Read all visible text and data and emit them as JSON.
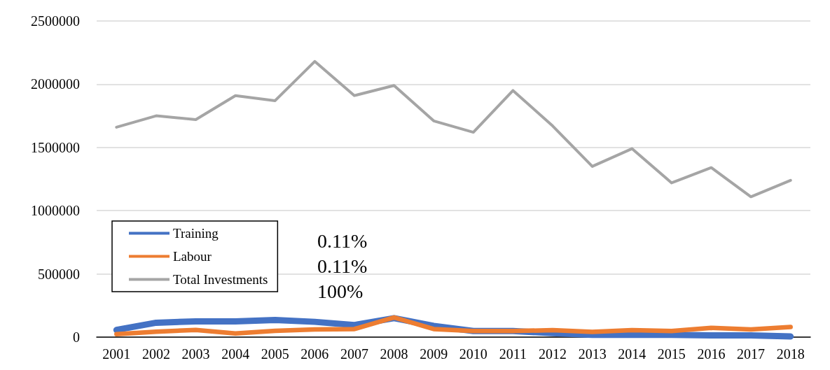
{
  "chart_data": {
    "type": "line",
    "categories": [
      "2001",
      "2002",
      "2003",
      "2004",
      "2005",
      "2006",
      "2007",
      "2008",
      "2009",
      "2010",
      "2011",
      "2012",
      "2013",
      "2014",
      "2015",
      "2016",
      "2017",
      "2018"
    ],
    "series": [
      {
        "name": "Training",
        "color": "#4472c4",
        "values": [
          57000,
          114000,
          125000,
          125000,
          135000,
          121000,
          96000,
          150000,
          89000,
          48000,
          48000,
          32000,
          18000,
          18000,
          18000,
          14000,
          14000,
          5000
        ]
      },
      {
        "name": "Labour",
        "color": "#ed7d31",
        "values": [
          23000,
          43000,
          57000,
          29000,
          50000,
          61000,
          64000,
          155000,
          64000,
          48000,
          48000,
          55000,
          41000,
          55000,
          48000,
          73000,
          61000,
          80000
        ]
      },
      {
        "name": "Total Investments",
        "color": "#a5a5a5",
        "values": [
          1660000,
          1750000,
          1720000,
          1910000,
          1870000,
          2180000,
          1910000,
          1990000,
          1710000,
          1620000,
          1950000,
          1670000,
          1350000,
          1490000,
          1220000,
          1340000,
          1110000,
          1240000
        ]
      }
    ],
    "ylim": [
      0,
      2500000
    ],
    "yticks": [
      0,
      500000,
      1000000,
      1500000,
      2000000,
      2500000
    ],
    "grid": "y",
    "legend": "left",
    "marker": "none",
    "line_style": "solid",
    "annotations": [
      "0.11%",
      "0.11%",
      "100%"
    ]
  }
}
